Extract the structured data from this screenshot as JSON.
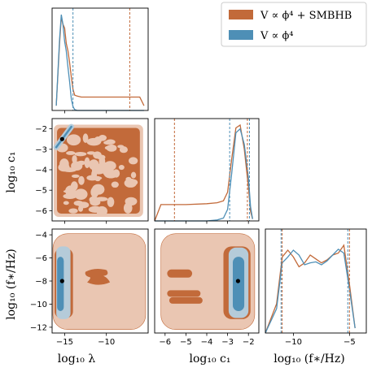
{
  "colors": {
    "smbhb": "#c26a3a",
    "smbhb_light": "#eac6b2",
    "phi4": "#4e8fb6",
    "phi4_light": "#b5cbd9"
  },
  "legend": [
    {
      "label": "V ∝ ϕ⁴ + SMBHB",
      "color": "#c26a3a"
    },
    {
      "label": "V ∝ ϕ⁴",
      "color": "#4e8fb6"
    }
  ],
  "chart_data": {
    "type": "corner",
    "parameters": [
      {
        "name": "log10_lambda",
        "label": "log₁₀ λ",
        "range": [
          -16.5,
          -5.0
        ],
        "ticks": [
          -15,
          -10
        ]
      },
      {
        "name": "log10_c1",
        "label": "log₁₀ c₁",
        "range": [
          -6.5,
          -1.5
        ],
        "ticks": [
          -6,
          -5,
          -4,
          -3,
          -2
        ]
      },
      {
        "name": "log10_fstar",
        "label": "log₁₀ (f∗/Hz)",
        "range": [
          -12.5,
          -3.5
        ],
        "ticks": [
          -12,
          -10,
          -8,
          -6,
          -4
        ]
      }
    ],
    "tick_labels": {
      "log10_lambda": [
        "−15",
        "−10"
      ],
      "log10_c1_x": [
        "−6",
        "−5",
        "−4",
        "−3",
        "−2"
      ],
      "log10_c1_y": [
        "−2",
        "−3",
        "−4",
        "−5",
        "−6"
      ],
      "log10_fstar_x": [
        "−10",
        "−5"
      ],
      "log10_fstar_y": [
        "−4",
        "−6",
        "−8",
        "−10",
        "−12"
      ]
    },
    "marginal_lambda": {
      "x": [
        -16,
        -15.6,
        -15.4,
        -15.2,
        -15.0,
        -14.8,
        -14.6,
        -14.4,
        -14.2,
        -14.0,
        -13.8,
        -13.5,
        -13,
        -12,
        -10,
        -8,
        -6,
        -5.5
      ],
      "smbhb": [
        0.05,
        0.7,
        0.97,
        0.9,
        0.86,
        0.7,
        0.62,
        0.5,
        0.35,
        0.22,
        0.16,
        0.15,
        0.14,
        0.14,
        0.14,
        0.14,
        0.14,
        0.05
      ],
      "phi4": [
        0.05,
        0.75,
        1.0,
        0.9,
        0.72,
        0.62,
        0.45,
        0.3,
        0.12,
        0.04,
        0.01,
        0.0,
        0.0,
        0.0,
        0.0,
        0.0,
        0.0,
        0.0
      ],
      "vlines": {
        "smbhb": -7.2,
        "phi4": -14.0
      }
    },
    "marginal_c1": {
      "x": [
        -6.5,
        -6.2,
        -6.0,
        -5.0,
        -4.0,
        -3.5,
        -3.2,
        -3.0,
        -2.8,
        -2.6,
        -2.4,
        -2.2,
        -2.0,
        -1.9,
        -1.8
      ],
      "smbhb": [
        0.0,
        0.17,
        0.17,
        0.17,
        0.18,
        0.19,
        0.21,
        0.3,
        0.65,
        0.97,
        1.0,
        0.75,
        0.35,
        0.1,
        0.02
      ],
      "phi4": [
        0.0,
        0.0,
        0.0,
        0.0,
        0.0,
        0.01,
        0.03,
        0.12,
        0.5,
        0.92,
        0.96,
        0.8,
        0.45,
        0.15,
        0.02
      ],
      "vlines": {
        "smbhb": [
          -5.55,
          -2.05
        ],
        "phi4": [
          -2.9,
          -1.95
        ]
      }
    },
    "marginal_fstar": {
      "x": [
        -12.5,
        -11.5,
        -11.0,
        -10.5,
        -10.0,
        -9.5,
        -9.0,
        -8.5,
        -8.0,
        -7.5,
        -7.0,
        -6.5,
        -6.0,
        -5.5,
        -5.0,
        -4.5
      ],
      "smbhb": [
        0.0,
        0.3,
        0.78,
        0.85,
        0.78,
        0.68,
        0.72,
        0.8,
        0.76,
        0.72,
        0.75,
        0.8,
        0.82,
        0.9,
        0.5,
        0.05
      ],
      "phi4": [
        0.0,
        0.25,
        0.72,
        0.78,
        0.85,
        0.8,
        0.7,
        0.72,
        0.73,
        0.7,
        0.74,
        0.8,
        0.86,
        0.82,
        0.45,
        0.05
      ],
      "vlines": {
        "smbhb": [
          -11.0,
          -5.0
        ],
        "phi4": [
          -11.1,
          -5.15
        ]
      }
    },
    "best_fit": {
      "log10_lambda": -15.3,
      "log10_c1": -2.5,
      "log10_fstar": -8.0
    }
  }
}
